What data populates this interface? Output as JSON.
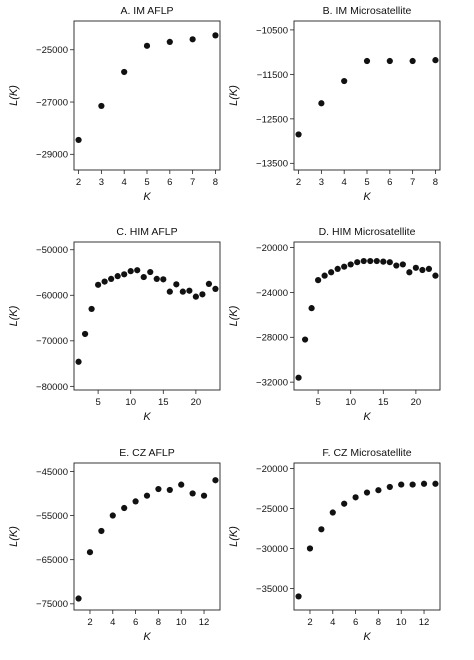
{
  "chart_data": [
    {
      "id": "A",
      "type": "scatter",
      "title": "A. IM AFLP",
      "xlabel": "K",
      "ylabel": "L(K)",
      "xlim": [
        1.8,
        8.2
      ],
      "ylim": [
        -29600,
        -23900
      ],
      "xticks": [
        2,
        3,
        4,
        5,
        6,
        7,
        8
      ],
      "xtick_labels": [
        "2",
        "3",
        "4",
        "5",
        "6",
        "7",
        "8"
      ],
      "yticks": [
        -25000,
        -27000,
        -29000
      ],
      "ytick_labels": [
        "−25000",
        "−27000",
        "−29000"
      ],
      "x": [
        2,
        3,
        4,
        5,
        6,
        7,
        8
      ],
      "y": [
        -28450,
        -27150,
        -25850,
        -24850,
        -24700,
        -24600,
        -24450
      ]
    },
    {
      "id": "B",
      "type": "scatter",
      "title": "B. IM Microsatellite",
      "xlabel": "K",
      "ylabel": "L(K)",
      "xlim": [
        1.8,
        8.2
      ],
      "ylim": [
        -13650,
        -10300
      ],
      "xticks": [
        2,
        3,
        4,
        5,
        6,
        7,
        8
      ],
      "xtick_labels": [
        "2",
        "3",
        "4",
        "5",
        "6",
        "7",
        "8"
      ],
      "yticks": [
        -10500,
        -11500,
        -12500,
        -13500
      ],
      "ytick_labels": [
        "−10500",
        "−11500",
        "−12500",
        "−13500"
      ],
      "x": [
        2,
        3,
        4,
        5,
        6,
        7,
        8
      ],
      "y": [
        -12850,
        -12150,
        -11650,
        -11200,
        -11200,
        -11200,
        -11180
      ]
    },
    {
      "id": "C",
      "type": "scatter",
      "title": "C. HIM AFLP",
      "xlabel": "K",
      "ylabel": "L(K)",
      "xlim": [
        1.3,
        23.7
      ],
      "ylim": [
        -80800,
        -48300
      ],
      "xticks": [
        5,
        10,
        15,
        20
      ],
      "xtick_labels": [
        "5",
        "10",
        "15",
        "20"
      ],
      "yticks": [
        -50000,
        -60000,
        -70000,
        -80000
      ],
      "ytick_labels": [
        "−50000",
        "−60000",
        "−70000",
        "−80000"
      ],
      "x": [
        2,
        3,
        4,
        5,
        6,
        7,
        8,
        9,
        10,
        11,
        12,
        13,
        14,
        15,
        16,
        17,
        18,
        19,
        20,
        21,
        22,
        23
      ],
      "y": [
        -74600,
        -68500,
        -63000,
        -57700,
        -57000,
        -56400,
        -55800,
        -55400,
        -54700,
        -54500,
        -56000,
        -54900,
        -56400,
        -56500,
        -59200,
        -57600,
        -59200,
        -59000,
        -60300,
        -59800,
        -57500,
        -58600
      ]
    },
    {
      "id": "D",
      "type": "scatter",
      "title": "D. HIM Microsatellite",
      "xlabel": "K",
      "ylabel": "L(K)",
      "xlim": [
        1.3,
        23.7
      ],
      "ylim": [
        -32700,
        -19500
      ],
      "xticks": [
        5,
        10,
        15,
        20
      ],
      "xtick_labels": [
        "5",
        "10",
        "15",
        "20"
      ],
      "yticks": [
        -20000,
        -24000,
        -28000,
        -32000
      ],
      "ytick_labels": [
        "−20000",
        "−24000",
        "−28000",
        "−32000"
      ],
      "x": [
        2,
        3,
        4,
        5,
        6,
        7,
        8,
        9,
        10,
        11,
        12,
        13,
        14,
        15,
        16,
        17,
        18,
        19,
        20,
        21,
        22,
        23
      ],
      "y": [
        -31600,
        -28200,
        -25400,
        -22900,
        -22500,
        -22200,
        -21900,
        -21700,
        -21500,
        -21300,
        -21200,
        -21200,
        -21200,
        -21250,
        -21300,
        -21600,
        -21500,
        -22200,
        -21800,
        -22000,
        -21900,
        -22500
      ]
    },
    {
      "id": "E",
      "type": "scatter",
      "title": "E. CZ AFLP",
      "xlabel": "K",
      "ylabel": "L(K)",
      "xlim": [
        0.6,
        13.4
      ],
      "ylim": [
        -76400,
        -43100
      ],
      "xticks": [
        2,
        4,
        6,
        8,
        10,
        12
      ],
      "xtick_labels": [
        "2",
        "4",
        "6",
        "8",
        "10",
        "12"
      ],
      "yticks": [
        -45000,
        -55000,
        -65000,
        -75000
      ],
      "ytick_labels": [
        "−45000",
        "−55000",
        "−65000",
        "−75000"
      ],
      "x": [
        1,
        2,
        3,
        4,
        5,
        6,
        7,
        8,
        9,
        10,
        11,
        12,
        13
      ],
      "y": [
        -73800,
        -63300,
        -58500,
        -55000,
        -53300,
        -51800,
        -50500,
        -49000,
        -49200,
        -48000,
        -50000,
        -50500,
        -47000
      ]
    },
    {
      "id": "F",
      "type": "scatter",
      "title": "F. CZ Microsatellite",
      "xlabel": "K",
      "ylabel": "L(K)",
      "xlim": [
        0.6,
        13.4
      ],
      "ylim": [
        -37700,
        -19300
      ],
      "xticks": [
        2,
        4,
        6,
        8,
        10,
        12
      ],
      "xtick_labels": [
        "2",
        "4",
        "6",
        "8",
        "10",
        "12"
      ],
      "yticks": [
        -20000,
        -25000,
        -30000,
        -35000
      ],
      "ytick_labels": [
        "−20000",
        "−25000",
        "−30000",
        "−35000"
      ],
      "x": [
        1,
        2,
        3,
        4,
        5,
        6,
        7,
        8,
        9,
        10,
        11,
        12,
        13
      ],
      "y": [
        -36000,
        -30000,
        -27600,
        -25500,
        -24400,
        -23600,
        -23000,
        -22700,
        -22300,
        -22000,
        -22000,
        -21900,
        -21900
      ]
    }
  ]
}
